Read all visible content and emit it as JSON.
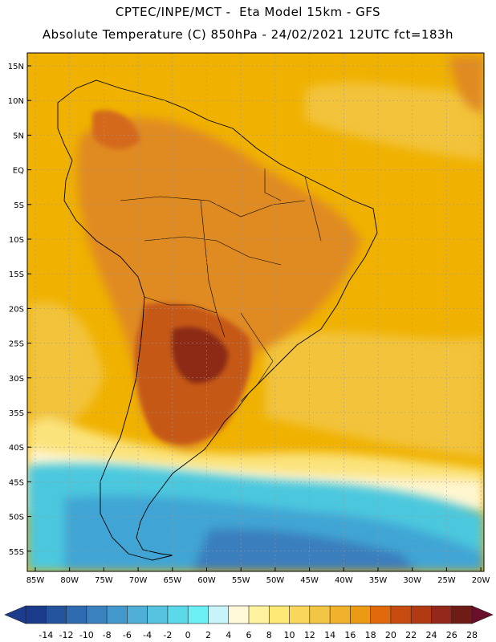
{
  "header": {
    "line1": "CPTEC/INPE/MCT -  Eta Model 15km - GFS",
    "line2": "Absolute Temperature (C) 850hPa - 24/02/2021 12UTC fct=183h"
  },
  "map": {
    "lat_labels": [
      "15N",
      "10N",
      "5N",
      "EQ",
      "5S",
      "10S",
      "15S",
      "20S",
      "25S",
      "30S",
      "35S",
      "40S",
      "45S",
      "50S",
      "55S"
    ],
    "lon_labels": [
      "85W",
      "80W",
      "75W",
      "70W",
      "65W",
      "60W",
      "55W",
      "50W",
      "45W",
      "40W",
      "35W",
      "30W",
      "25W",
      "20W"
    ],
    "colors": {
      "ocean_warm": "#F0B100",
      "ocean_mid": "#F2C33A",
      "land_hot": "#E08A20",
      "land_hotter": "#D4691A",
      "core_hot": "#B4461B",
      "core_hottest": "#8C2B12",
      "cold_shallow": "#4BC8DE",
      "cold_mid": "#3FA5D4",
      "cold_deep": "#3A7EBD",
      "coast": "#000000"
    }
  },
  "colorbar": {
    "labels": [
      "-14",
      "-12",
      "-10",
      "-8",
      "-6",
      "-4",
      "-2",
      "0",
      "2",
      "4",
      "6",
      "8",
      "10",
      "12",
      "14",
      "16",
      "18",
      "20",
      "22",
      "24",
      "26",
      "28"
    ],
    "colors": [
      "#1B3C8C",
      "#24549E",
      "#2F6BB0",
      "#3982BF",
      "#4499CC",
      "#4FAFD7",
      "#56C4E0",
      "#5BD8EA",
      "#6BEFF5",
      "#C8F4F9",
      "#FFF9DA",
      "#FFF3A0",
      "#FDE775",
      "#F8D75C",
      "#F3C544",
      "#F0B22A",
      "#EC9A14",
      "#E0690C",
      "#C84C10",
      "#B13A12",
      "#93281A",
      "#701C16"
    ]
  }
}
